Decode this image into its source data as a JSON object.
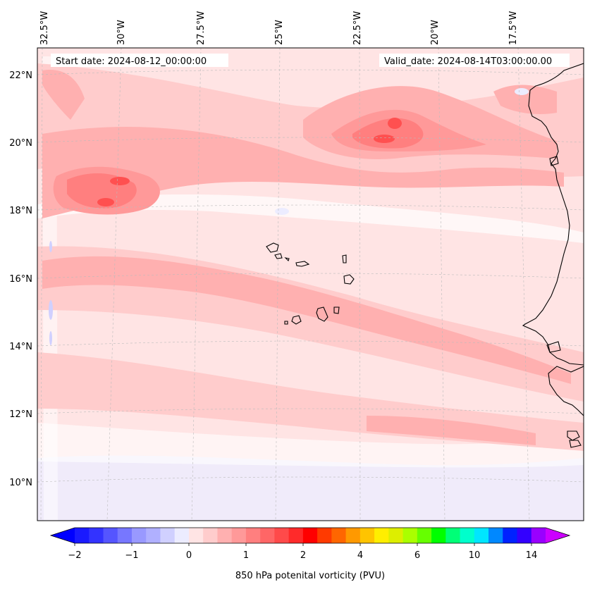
{
  "map": {
    "start_date": "Start date: 2024-08-12_00:00:00",
    "valid_date": "Valid_date: 2024-08-14T03:00:00.00",
    "lon_labels": [
      "32.5°W",
      "30°W",
      "27.5°W",
      "25°W",
      "22.5°W",
      "20°W",
      "17.5°W"
    ],
    "lat_labels": [
      "22°N",
      "20°N",
      "18°N",
      "16°N",
      "14°N",
      "12°N",
      "10°N"
    ]
  },
  "colorbar": {
    "title": "850 hPa potenital vorticity (PVU)",
    "tick_labels": [
      "−2",
      "−1",
      "0",
      "1",
      "2",
      "4",
      "6",
      "10",
      "14"
    ],
    "colors": [
      "#1a1aff",
      "#3333ff",
      "#5555ff",
      "#7777ff",
      "#9999ff",
      "#b0b0ff",
      "#d0d0ff",
      "#ececff",
      "#ffe4e4",
      "#ffcccc",
      "#ffb0b0",
      "#ff9999",
      "#ff7f7f",
      "#ff6666",
      "#ff4a4a",
      "#ff2a2a",
      "#ff0000",
      "#ff3a00",
      "#ff6600",
      "#ff9900",
      "#ffc400",
      "#ffee00",
      "#ddee00",
      "#aaff00",
      "#66ff00",
      "#00ff00",
      "#00ff77",
      "#00ffcc",
      "#00e6ff",
      "#0088ff",
      "#0022ff",
      "#3300ff",
      "#9900ff"
    ],
    "under_color": "#0000ff",
    "over_color": "#cc00ff"
  },
  "field_colors": {
    "background": "#ffe4e4",
    "light": "#ffcccc",
    "medium": "#ffb0b0",
    "strong": "#ff9999",
    "stronger": "#ff7f7f",
    "max": "#ff5050",
    "neg": "#ececff",
    "white": "#ffffff"
  }
}
